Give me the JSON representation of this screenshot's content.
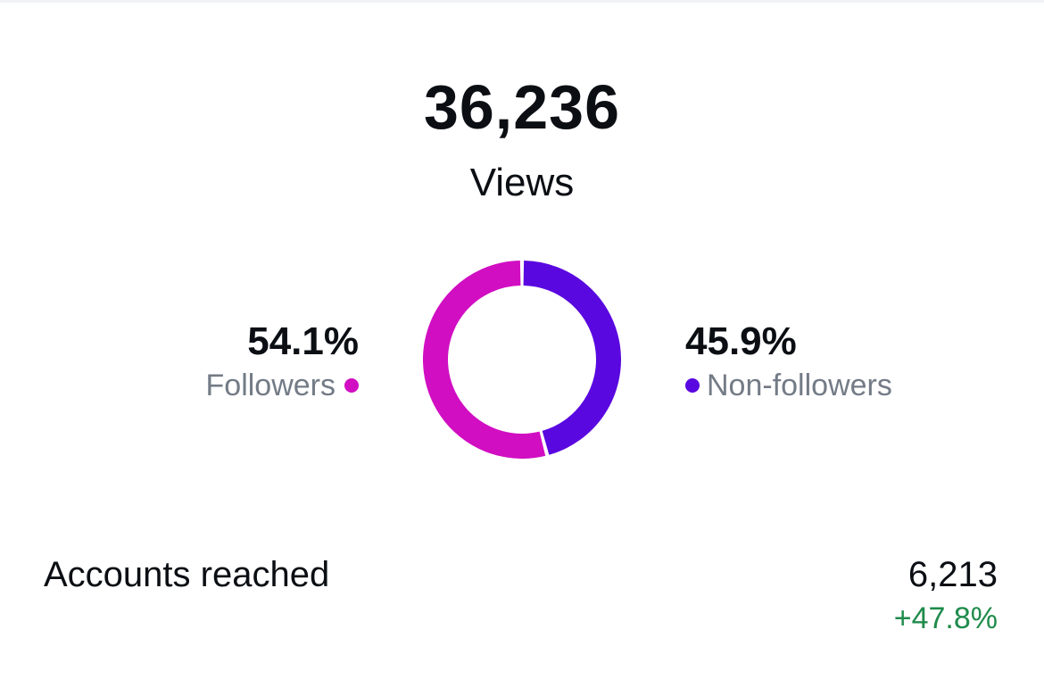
{
  "summary": {
    "total": "36,236",
    "label": "Views"
  },
  "breakdown": {
    "followers": {
      "percent": "54.1%",
      "label": "Followers",
      "value": 54.1,
      "color": "#d10ec2"
    },
    "non_followers": {
      "percent": "45.9%",
      "label": "Non-followers",
      "value": 45.9,
      "color": "#5a08e0"
    }
  },
  "accounts_reached": {
    "label": "Accounts reached",
    "value": "6,213",
    "change": "+47.8%",
    "change_color": "#1f8b4c"
  }
}
